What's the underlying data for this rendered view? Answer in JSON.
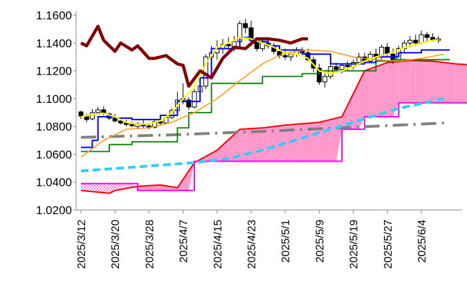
{
  "chart_data": {
    "type": "line",
    "title": "",
    "xlabel": "",
    "ylabel": "",
    "ylim": [
      1.02,
      1.16
    ],
    "yticks": [
      "1.1600",
      "1.1400",
      "1.1200",
      "1.1000",
      "1.0800",
      "1.0600",
      "1.0400",
      "1.0200"
    ],
    "ytick_values": [
      1.16,
      1.14,
      1.12,
      1.1,
      1.08,
      1.06,
      1.04,
      1.02
    ],
    "xticks": [
      "2025/3/12",
      "2025/3/20",
      "2025/3/28",
      "2025/4/7",
      "2025/4/15",
      "2025/4/23",
      "2025/5/1",
      "2025/5/9",
      "2025/5/19",
      "2025/5/27",
      "2025/6/4"
    ],
    "xtick_index": [
      0,
      6,
      12,
      18,
      24,
      30,
      36,
      42,
      48,
      54,
      60
    ],
    "grid": false,
    "legend": "none",
    "candles": [
      [
        1.0905,
        1.0915,
        1.0855,
        1.0875
      ],
      [
        1.0875,
        1.089,
        1.083,
        1.085
      ],
      [
        1.0855,
        1.0925,
        1.0845,
        1.09
      ],
      [
        1.09,
        1.094,
        1.0885,
        1.092
      ],
      [
        1.092,
        1.0945,
        1.088,
        1.0895
      ],
      [
        1.089,
        1.09,
        1.0845,
        1.086
      ],
      [
        1.086,
        1.089,
        1.083,
        1.084
      ],
      [
        1.084,
        1.086,
        1.0815,
        1.0825
      ],
      [
        1.0825,
        1.085,
        1.08,
        1.0815
      ],
      [
        1.0815,
        1.0835,
        1.0795,
        1.0805
      ],
      [
        1.08,
        1.083,
        1.078,
        1.082
      ],
      [
        1.082,
        1.0845,
        1.079,
        1.0805
      ],
      [
        1.0805,
        1.0825,
        1.078,
        1.0795
      ],
      [
        1.0795,
        1.0845,
        1.0785,
        1.0835
      ],
      [
        1.0835,
        1.0855,
        1.081,
        1.0825
      ],
      [
        1.0825,
        1.088,
        1.0815,
        1.0865
      ],
      [
        1.0865,
        1.093,
        1.0855,
        1.0915
      ],
      [
        1.0915,
        1.105,
        1.09,
        1.099
      ],
      [
        1.099,
        1.111,
        1.096,
        1.1
      ],
      [
        1.099,
        1.101,
        1.092,
        1.094
      ],
      [
        1.094,
        1.107,
        1.093,
        1.105
      ],
      [
        1.105,
        1.115,
        1.1,
        1.109
      ],
      [
        1.109,
        1.132,
        1.107,
        1.13
      ],
      [
        1.13,
        1.138,
        1.124,
        1.133
      ],
      [
        1.133,
        1.142,
        1.128,
        1.136
      ],
      [
        1.136,
        1.143,
        1.132,
        1.139
      ],
      [
        1.139,
        1.144,
        1.135,
        1.138
      ],
      [
        1.137,
        1.145,
        1.134,
        1.141
      ],
      [
        1.141,
        1.156,
        1.139,
        1.154
      ],
      [
        1.154,
        1.1575,
        1.147,
        1.151
      ],
      [
        1.151,
        1.156,
        1.138,
        1.142
      ],
      [
        1.142,
        1.144,
        1.134,
        1.136
      ],
      [
        1.136,
        1.142,
        1.134,
        1.14
      ],
      [
        1.14,
        1.144,
        1.136,
        1.138
      ],
      [
        1.138,
        1.14,
        1.132,
        1.134
      ],
      [
        1.134,
        1.138,
        1.129,
        1.131
      ],
      [
        1.131,
        1.136,
        1.128,
        1.13
      ],
      [
        1.13,
        1.134,
        1.127,
        1.132
      ],
      [
        1.132,
        1.137,
        1.13,
        1.135
      ],
      [
        1.135,
        1.137,
        1.132,
        1.133
      ],
      [
        1.133,
        1.136,
        1.127,
        1.128
      ],
      [
        1.128,
        1.13,
        1.119,
        1.122
      ],
      [
        1.122,
        1.125,
        1.11,
        1.112
      ],
      [
        1.112,
        1.118,
        1.108,
        1.116
      ],
      [
        1.116,
        1.125,
        1.114,
        1.123
      ],
      [
        1.123,
        1.126,
        1.119,
        1.121
      ],
      [
        1.121,
        1.125,
        1.118,
        1.124
      ],
      [
        1.124,
        1.127,
        1.12,
        1.123
      ],
      [
        1.123,
        1.128,
        1.121,
        1.126
      ],
      [
        1.126,
        1.133,
        1.124,
        1.13
      ],
      [
        1.13,
        1.133,
        1.125,
        1.127
      ],
      [
        1.127,
        1.134,
        1.126,
        1.132
      ],
      [
        1.132,
        1.136,
        1.129,
        1.13
      ],
      [
        1.13,
        1.139,
        1.128,
        1.137
      ],
      [
        1.137,
        1.14,
        1.13,
        1.132
      ],
      [
        1.132,
        1.136,
        1.125,
        1.128
      ],
      [
        1.128,
        1.138,
        1.126,
        1.136
      ],
      [
        1.136,
        1.142,
        1.133,
        1.14
      ],
      [
        1.14,
        1.145,
        1.137,
        1.142
      ],
      [
        1.142,
        1.146,
        1.138,
        1.14
      ],
      [
        1.14,
        1.149,
        1.139,
        1.146
      ],
      [
        1.146,
        1.148,
        1.141,
        1.144
      ],
      [
        1.144,
        1.147,
        1.141,
        1.142
      ],
      [
        1.142,
        1.145,
        1.14,
        1.143
      ]
    ],
    "series": [
      {
        "color": "#FFFF00",
        "width": 2.2,
        "dash": "",
        "x": [
          0,
          2,
          4,
          6,
          8,
          10,
          12,
          14,
          16,
          18,
          20,
          22,
          24,
          26,
          28,
          30,
          32,
          34,
          36,
          38,
          40,
          42,
          44,
          46,
          48,
          50,
          52,
          54,
          56,
          58,
          60,
          62,
          63
        ],
        "values": [
          1.087,
          1.0885,
          1.0895,
          1.087,
          1.083,
          1.0815,
          1.082,
          1.084,
          1.09,
          1.1,
          1.108,
          1.125,
          1.137,
          1.14,
          1.144,
          1.143,
          1.14,
          1.137,
          1.133,
          1.132,
          1.129,
          1.12,
          1.118,
          1.12,
          1.123,
          1.127,
          1.13,
          1.132,
          1.135,
          1.138,
          1.14,
          1.142,
          1.142
        ]
      },
      {
        "color": "#FF9900",
        "width": 1.5,
        "dash": "",
        "x": [
          0,
          4,
          8,
          12,
          16,
          20,
          24,
          28,
          32,
          36,
          40,
          44,
          48,
          52,
          56,
          60,
          64
        ],
        "values": [
          1.058,
          1.07,
          1.078,
          1.079,
          1.083,
          1.09,
          1.1,
          1.113,
          1.125,
          1.133,
          1.135,
          1.134,
          1.13,
          1.128,
          1.127,
          1.129,
          1.132
        ]
      },
      {
        "color": "#0000FF",
        "width": 2,
        "dash": "",
        "steps": true,
        "x": [
          0,
          2,
          3,
          6,
          9,
          14,
          17,
          21,
          23,
          28,
          30,
          33,
          35,
          39,
          44,
          50,
          52,
          56,
          60,
          65
        ],
        "values": [
          1.065,
          1.07,
          1.087,
          1.086,
          1.085,
          1.088,
          1.098,
          1.115,
          1.136,
          1.144,
          1.141,
          1.138,
          1.135,
          1.132,
          1.125,
          1.126,
          1.13,
          1.133,
          1.135,
          1.135
        ]
      },
      {
        "color": "#008000",
        "width": 1.8,
        "dash": "",
        "steps": true,
        "x": [
          0,
          5,
          9,
          17,
          19,
          23,
          32,
          39,
          42,
          52,
          55,
          65
        ],
        "values": [
          1.062,
          1.067,
          1.069,
          1.079,
          1.09,
          1.111,
          1.116,
          1.118,
          1.12,
          1.127,
          1.128,
          1.128
        ]
      },
      {
        "color": "#808080",
        "width": 4,
        "dash": "22 8 3 8",
        "x": [
          0,
          16,
          32,
          48,
          64
        ],
        "values": [
          1.0722,
          1.074,
          1.0765,
          1.0795,
          1.0825
        ]
      },
      {
        "color": "#800000",
        "width": 4.5,
        "dash": "",
        "x": [
          0,
          1,
          3,
          4,
          6,
          7,
          9,
          10,
          12,
          13,
          15,
          17,
          18,
          19,
          21,
          23,
          25,
          27,
          29,
          31,
          33,
          35,
          37,
          39,
          40
        ],
        "values": [
          1.14,
          1.138,
          1.152,
          1.142,
          1.134,
          1.14,
          1.135,
          1.138,
          1.129,
          1.129,
          1.131,
          1.125,
          1.124,
          1.109,
          1.12,
          1.115,
          1.129,
          1.137,
          1.136,
          1.143,
          1.143,
          1.142,
          1.14,
          1.143,
          1.143
        ]
      },
      {
        "color": "#33CCFF",
        "width": 4,
        "dash": "11 6",
        "x": [
          0,
          10,
          20,
          26,
          32,
          40,
          48,
          56,
          64
        ],
        "values": [
          1.048,
          1.051,
          1.054,
          1.057,
          1.063,
          1.073,
          1.083,
          1.093,
          1.1
        ]
      }
    ],
    "cloud_span_a": {
      "color": "#FF0000",
      "x": [
        0,
        5,
        6,
        10,
        14,
        17,
        20,
        24,
        28,
        32,
        36,
        42,
        46,
        50,
        54,
        58,
        62,
        66,
        70
      ],
      "values": [
        1.034,
        1.032,
        1.034,
        1.037,
        1.038,
        1.036,
        1.054,
        1.063,
        1.078,
        1.079,
        1.081,
        1.083,
        1.087,
        1.12,
        1.126,
        1.1275,
        1.127,
        1.125,
        1.124
      ]
    },
    "cloud_span_b": {
      "color": "#FF00FF",
      "x": [
        0,
        8,
        10,
        14,
        17,
        20,
        24,
        32,
        40,
        44,
        46,
        50,
        56,
        60,
        64,
        70
      ],
      "values": [
        1.039,
        1.039,
        1.034,
        1.034,
        1.034,
        1.055,
        1.055,
        1.055,
        1.055,
        1.055,
        1.078,
        1.087,
        1.097,
        1.097,
        1.097,
        1.097
      ]
    }
  }
}
